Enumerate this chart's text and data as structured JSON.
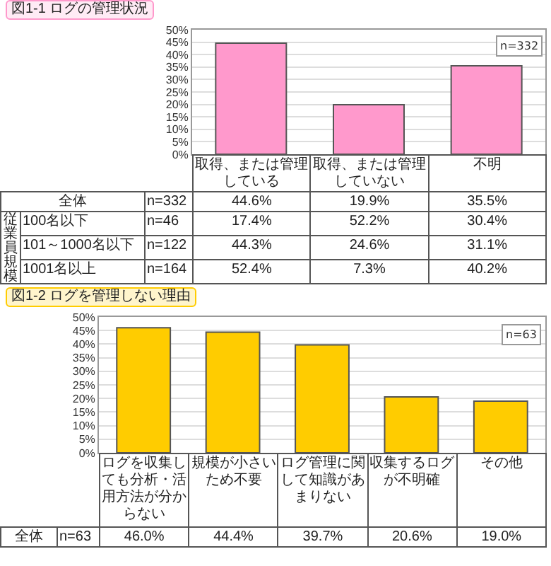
{
  "chart_data": [
    {
      "type": "bar",
      "title": "図1-1 ログの管理状況",
      "categories": [
        "取得、または管理している",
        "取得、または管理していない",
        "不明"
      ],
      "values": [
        44.6,
        19.9,
        35.5
      ],
      "color": "#ff99cc",
      "value_labels": [
        "44.6%",
        "19.9%",
        "35.5%"
      ],
      "ylim": [
        0,
        50
      ],
      "yticks": [
        {
          "value": 0,
          "label": "0%"
        },
        {
          "value": 5,
          "label": "5%"
        },
        {
          "value": 10,
          "label": "10%"
        },
        {
          "value": 15,
          "label": "15%"
        },
        {
          "value": 20,
          "label": "20%"
        },
        {
          "value": 25,
          "label": "25%"
        },
        {
          "value": 30,
          "label": "30%"
        },
        {
          "value": 35,
          "label": "35%"
        },
        {
          "value": 40,
          "label": "40%"
        },
        {
          "value": 45,
          "label": "45%"
        },
        {
          "value": 50,
          "label": "50%"
        }
      ],
      "grid": "y",
      "annotations": [
        "n=332",
        "全体",
        "n=332"
      ]
    },
    {
      "type": "other",
      "annotations": [
        "従業員規模",
        "100名以下",
        "n=46",
        "17.4%",
        "52.2%",
        "30.4%",
        "101～1000名以下",
        "n=122",
        "44.3%",
        "24.6%",
        "31.1%",
        "1001名以上",
        "n=164",
        "52.4%",
        "7.3%",
        "40.2%"
      ]
    },
    {
      "type": "bar",
      "title": "図1-2 ログを管理しない理由",
      "categories": [
        "ログを収集しても分析・活用方法が分からない",
        "規模が小さいため不要",
        "ログ管理に関して知識があまりない",
        "収集するログが不明確",
        "その他"
      ],
      "values": [
        46.0,
        44.4,
        39.7,
        20.6,
        19.0
      ],
      "color": "#ffcc00",
      "value_labels": [
        "46.0%",
        "44.4%",
        "39.7%",
        "20.6%",
        "19.0%"
      ],
      "ylim": [
        0,
        50
      ],
      "yticks": [
        {
          "value": 0,
          "label": "0%"
        },
        {
          "value": 5,
          "label": "5%"
        },
        {
          "value": 10,
          "label": "10%"
        },
        {
          "value": 15,
          "label": "15%"
        },
        {
          "value": 20,
          "label": "20%"
        },
        {
          "value": 25,
          "label": "25%"
        },
        {
          "value": 30,
          "label": "30%"
        },
        {
          "value": 35,
          "label": "35%"
        },
        {
          "value": 40,
          "label": "40%"
        },
        {
          "value": 45,
          "label": "45%"
        },
        {
          "value": 50,
          "label": "50%"
        }
      ],
      "grid": "y",
      "annotations": [
        "n=63",
        "全体",
        "n=63"
      ]
    }
  ]
}
